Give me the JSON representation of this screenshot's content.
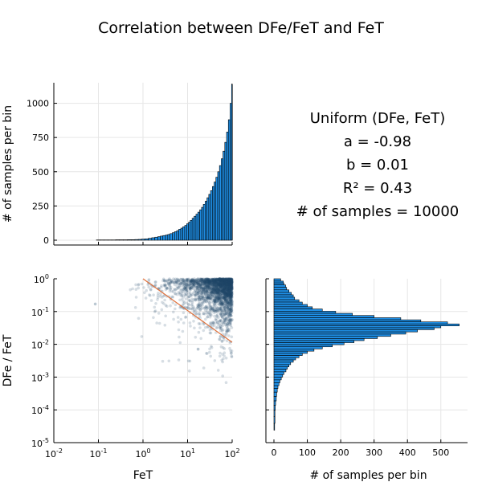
{
  "title": "Correlation between DFe/FeT and FeT",
  "stats": {
    "heading": "Uniform (DFe, FeT)",
    "a": "a = -0.98",
    "b": "b = 0.01",
    "r2": "R² = 0.43",
    "n": "# of samples = 10000"
  },
  "colors": {
    "bar_fill": "#1f8fe6",
    "scatter": "#1f4a6a",
    "fit_line": "#e0703a",
    "grid": "#e6e6e6",
    "axis": "#000000"
  },
  "chart_data": [
    {
      "type": "bar",
      "title": "",
      "xlabel": "",
      "ylabel": "# of samples per bin",
      "xscale": "log",
      "xlim": [
        0.01,
        100
      ],
      "ylim": [
        0,
        1150
      ],
      "yticks": [
        "0",
        "250",
        "500",
        "750",
        "1000"
      ],
      "x": [
        0.1,
        0.12,
        0.15,
        0.18,
        0.22,
        0.27,
        0.33,
        0.4,
        0.5,
        0.6,
        0.72,
        0.85,
        1.0,
        1.2,
        1.45,
        1.7,
        2.0,
        2.3,
        2.6,
        3.0,
        3.4,
        3.8,
        4.3,
        4.8,
        5.4,
        6.0,
        6.7,
        7.4,
        8.2,
        9.1,
        10,
        11,
        12,
        13.3,
        14.7,
        16.2,
        17.8,
        19.6,
        21.5,
        23.6,
        26,
        28.5,
        31.3,
        34.3,
        37.6,
        41.2,
        45.2,
        49.5,
        54.3,
        59.5,
        65.2,
        71.5,
        78.4,
        85.9,
        94.1,
        100
      ],
      "values": [
        2,
        2,
        2,
        2,
        2,
        3,
        3,
        3,
        4,
        4,
        5,
        6,
        8,
        10,
        14,
        18,
        22,
        26,
        30,
        34,
        38,
        42,
        48,
        55,
        62,
        70,
        80,
        88,
        98,
        108,
        120,
        132,
        145,
        160,
        175,
        190,
        205,
        222,
        240,
        262,
        285,
        310,
        335,
        362,
        392,
        425,
        460,
        500,
        545,
        595,
        650,
        715,
        790,
        880,
        1000,
        1140
      ]
    },
    {
      "type": "scatter",
      "title": "",
      "xlabel": "FeT",
      "ylabel": "DFe / FeT",
      "xscale": "log",
      "yscale": "log",
      "xlim": [
        0.01,
        100
      ],
      "ylim": [
        1e-05,
        1
      ],
      "xticks": [
        "10^-2",
        "10^-1",
        "10^0",
        "10^1",
        "10^2"
      ],
      "yticks": [
        "10^-5",
        "10^-4",
        "10^-3",
        "10^-2",
        "10^-1",
        "10^0"
      ],
      "fit_line": {
        "x": [
          1,
          100
        ],
        "y": [
          1.0,
          0.0115
        ]
      },
      "points_note_count": 10000
    },
    {
      "type": "bar",
      "orientation": "horizontal",
      "title": "",
      "xlabel": "# of samples per bin",
      "ylabel": "",
      "xlim": [
        0,
        580
      ],
      "xticks": [
        "0",
        "100",
        "200",
        "300",
        "400",
        "500"
      ],
      "yscale": "log",
      "ylim": [
        1e-05,
        1
      ],
      "y": [
        0.9,
        0.8,
        0.7,
        0.6,
        0.5,
        0.42,
        0.35,
        0.3,
        0.25,
        0.21,
        0.18,
        0.15,
        0.13,
        0.11,
        0.095,
        0.082,
        0.07,
        0.06,
        0.052,
        0.045,
        0.039,
        0.034,
        0.03,
        0.026,
        0.022,
        0.019,
        0.016,
        0.014,
        0.012,
        0.0105,
        0.009,
        0.0078,
        0.0067,
        0.0057,
        0.0049,
        0.0042,
        0.0036,
        0.0031,
        0.0026,
        0.0022,
        0.0019,
        0.0016,
        0.0013,
        0.0011,
        0.0009,
        0.00075,
        0.0006,
        0.0005,
        0.0004,
        0.0003,
        0.00022,
        0.00016,
        0.00012,
        8e-05,
        5e-05,
        3e-05
      ],
      "values": [
        20,
        28,
        30,
        35,
        38,
        45,
        52,
        58,
        62,
        75,
        85,
        100,
        115,
        145,
        185,
        235,
        300,
        380,
        440,
        520,
        555,
        500,
        480,
        430,
        395,
        350,
        310,
        270,
        240,
        210,
        175,
        145,
        120,
        100,
        85,
        75,
        65,
        58,
        50,
        45,
        40,
        36,
        30,
        26,
        22,
        18,
        15,
        12,
        10,
        8,
        7,
        5,
        4,
        3,
        3,
        2
      ]
    }
  ]
}
